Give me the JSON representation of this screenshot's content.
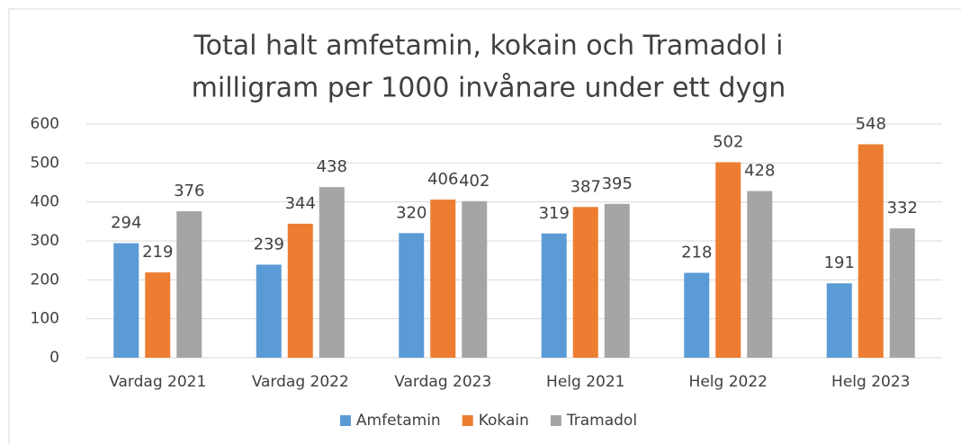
{
  "chart_data": {
    "type": "bar",
    "title": [
      "Total halt amfetamin, kokain och Tramadol i",
      "milligram per 1000 invånare under ett dygn"
    ],
    "categories": [
      "Vardag 2021",
      "Vardag 2022",
      "Vardag 2023",
      "Helg 2021",
      "Helg 2022",
      "Helg 2023"
    ],
    "series": [
      {
        "name": "Amfetamin",
        "color": "#5b9bd5",
        "values": [
          294,
          239,
          320,
          319,
          218,
          191
        ]
      },
      {
        "name": "Kokain",
        "color": "#ed7d31",
        "values": [
          219,
          344,
          406,
          387,
          502,
          548
        ]
      },
      {
        "name": "Tramadol",
        "color": "#a5a5a5",
        "values": [
          376,
          438,
          402,
          395,
          428,
          332
        ]
      }
    ],
    "ylim": [
      0,
      600
    ],
    "yticks": [
      0,
      100,
      200,
      300,
      400,
      500,
      600
    ],
    "grid": true,
    "legend": "bottom"
  }
}
